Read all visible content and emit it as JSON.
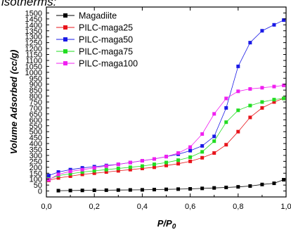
{
  "caption": "isotherms:",
  "chart_data": {
    "type": "scatter",
    "xlabel": "P/P",
    "xlabel_sub": "0",
    "ylabel": "Volume Adsorbed (cc/g)",
    "xlim": [
      0,
      1
    ],
    "ylim": [
      -50,
      1550
    ],
    "x_ticks": [
      "0,0",
      "0,2",
      "0,4",
      "0,6",
      "0,8",
      "1,0"
    ],
    "x_tick_values": [
      0,
      0.2,
      0.4,
      0.6,
      0.8,
      1.0
    ],
    "y_ticks": [
      "0",
      "50",
      "100",
      "150",
      "200",
      "250",
      "300",
      "350",
      "400",
      "450",
      "500",
      "550",
      "600",
      "650",
      "700",
      "750",
      "800",
      "850",
      "900",
      "950",
      "1000",
      "1050",
      "1100",
      "1150",
      "1200",
      "1250",
      "1300",
      "1350",
      "1400",
      "1450",
      "1500"
    ],
    "y_tick_values": [
      0,
      50,
      100,
      150,
      200,
      250,
      300,
      350,
      400,
      450,
      500,
      550,
      600,
      650,
      700,
      750,
      800,
      850,
      900,
      950,
      1000,
      1050,
      1100,
      1150,
      1200,
      1250,
      1300,
      1350,
      1400,
      1450,
      1500
    ],
    "legend_position": "top-left",
    "series": [
      {
        "name": "Magadiite",
        "color": "#000000",
        "marker": "square",
        "x": [
          0.05,
          0.1,
          0.15,
          0.2,
          0.25,
          0.3,
          0.35,
          0.4,
          0.45,
          0.5,
          0.55,
          0.6,
          0.65,
          0.7,
          0.75,
          0.8,
          0.85,
          0.9,
          0.95,
          0.99
        ],
        "y": [
          3,
          4,
          5,
          6,
          7,
          8,
          9,
          10,
          12,
          14,
          16,
          18,
          22,
          26,
          30,
          35,
          42,
          55,
          65,
          95
        ]
      },
      {
        "name": "PILC-maga25",
        "color": "#e8141b",
        "marker": "square",
        "x": [
          0.01,
          0.05,
          0.1,
          0.15,
          0.2,
          0.25,
          0.3,
          0.35,
          0.4,
          0.45,
          0.5,
          0.55,
          0.6,
          0.65,
          0.7,
          0.75,
          0.8,
          0.85,
          0.9,
          0.95,
          0.99
        ],
        "y": [
          90,
          110,
          125,
          140,
          150,
          160,
          170,
          180,
          190,
          200,
          215,
          230,
          250,
          280,
          320,
          390,
          500,
          620,
          700,
          750,
          780
        ]
      },
      {
        "name": "PILC-maga50",
        "color": "#1a1ae6",
        "marker": "square",
        "x": [
          0.01,
          0.05,
          0.1,
          0.15,
          0.2,
          0.25,
          0.3,
          0.35,
          0.4,
          0.45,
          0.5,
          0.55,
          0.6,
          0.65,
          0.7,
          0.75,
          0.8,
          0.85,
          0.9,
          0.95,
          0.99
        ],
        "y": [
          130,
          160,
          180,
          195,
          205,
          215,
          225,
          240,
          255,
          270,
          290,
          310,
          340,
          380,
          460,
          700,
          1050,
          1250,
          1350,
          1400,
          1440
        ]
      },
      {
        "name": "PILC-maga75",
        "color": "#22dd22",
        "marker": "square",
        "x": [
          0.01,
          0.05,
          0.1,
          0.15,
          0.2,
          0.25,
          0.3,
          0.35,
          0.4,
          0.45,
          0.5,
          0.55,
          0.6,
          0.65,
          0.7,
          0.75,
          0.8,
          0.85,
          0.9,
          0.95,
          0.99
        ],
        "y": [
          100,
          130,
          145,
          160,
          170,
          180,
          190,
          200,
          210,
          225,
          240,
          260,
          285,
          330,
          420,
          580,
          680,
          720,
          750,
          770,
          780
        ]
      },
      {
        "name": "PILC-maga100",
        "color": "#f020f0",
        "marker": "square",
        "x": [
          0.01,
          0.05,
          0.1,
          0.15,
          0.2,
          0.25,
          0.3,
          0.35,
          0.4,
          0.45,
          0.5,
          0.55,
          0.6,
          0.65,
          0.7,
          0.75,
          0.8,
          0.85,
          0.9,
          0.95,
          0.99
        ],
        "y": [
          95,
          140,
          165,
          180,
          195,
          210,
          225,
          240,
          255,
          270,
          290,
          320,
          370,
          480,
          650,
          780,
          840,
          860,
          870,
          880,
          890
        ]
      }
    ]
  }
}
